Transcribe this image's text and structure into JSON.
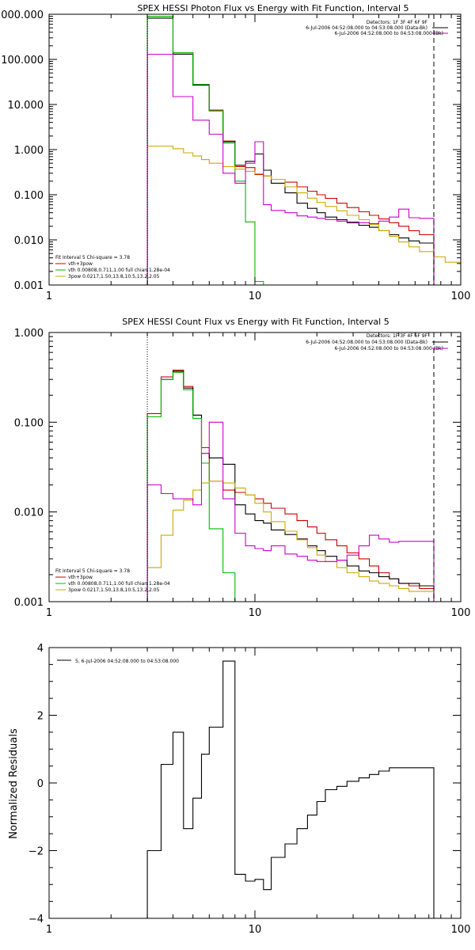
{
  "chart_data": [
    {
      "type": "line",
      "title": "SPEX HESSI Photon Flux vs Energy with Fit Function, Interval 5",
      "xscale": "log",
      "yscale": "log",
      "xlim": [
        1,
        100
      ],
      "ylim": [
        0.001,
        1000
      ],
      "xticks": [
        "1",
        "10",
        "100"
      ],
      "yticks": [
        "1000.000",
        "100.000",
        "10.000",
        "1.000",
        "0.100",
        "0.010",
        "0.001"
      ],
      "ytick_values": [
        1000,
        100,
        10,
        1,
        0.1,
        0.01,
        0.001
      ],
      "grid": false,
      "detectors_label": "Detectors: 1F 3F 4F 6F 9F",
      "legend_top": [
        {
          "text": "6-Jul-2006 04:52:08.000 to 04:53:08.000 (Data-Bk)",
          "color": "#000000"
        },
        {
          "text": "6-Jul-2006 04:52:08.000 to 04:53:08.000 (Bk)",
          "color": "#cc00cc"
        }
      ],
      "legend_bottom": [
        {
          "text": "Fit Interval 5   Chi-square = 3.78",
          "color": "#000000"
        },
        {
          "text": "vth+3pow",
          "color": "#cc0000"
        },
        {
          "text": "vth 0.00808,0.711,1.00  full chian 1.28e-04",
          "color": "#00bb00"
        },
        {
          "text": "3pow 0.0217,1.50,13.8,10.5,13.2,2.05",
          "color": "#ccaa00"
        }
      ],
      "vlines": [
        {
          "x": 3.0,
          "style": "dotted",
          "color": "#000000"
        },
        {
          "x": 74,
          "style": "dashed",
          "color": "#000000"
        }
      ],
      "edges": [
        3.0,
        3.5,
        4.0,
        4.5,
        5.0,
        5.5,
        6.0,
        7.0,
        8.0,
        9.0,
        10.0,
        11.0,
        12.0,
        14.0,
        16.0,
        18.0,
        20.0,
        22.0,
        25.0,
        28.0,
        32.0,
        36.0,
        40.0,
        45.0,
        50.0,
        56.0,
        63.0,
        74.0,
        84.0,
        100.0
      ],
      "series": [
        {
          "name": "vth+3pow",
          "color": "#cc0000",
          "values": [
            900,
            900,
            140,
            140,
            28,
            28,
            7.5,
            1.55,
            0.42,
            0.4,
            0.28,
            0.26,
            0.22,
            0.19,
            0.15,
            0.12,
            0.1,
            0.083,
            0.065,
            0.052,
            0.042,
            0.035,
            0.029,
            0.024,
            0.02,
            0.016,
            0.013
          ]
        },
        {
          "name": "Data-Bk",
          "color": "#000000",
          "values": [
            820,
            820,
            130,
            130,
            27,
            27,
            7.2,
            1.5,
            0.45,
            0.55,
            0.8,
            0.35,
            0.18,
            0.11,
            0.065,
            0.05,
            0.04,
            0.032,
            0.028,
            0.024,
            0.021,
            0.019,
            0.016,
            0.013,
            0.011,
            0.0095,
            0.0085
          ]
        },
        {
          "name": "vth",
          "color": "#00bb00",
          "values": [
            900,
            900,
            140,
            140,
            28,
            28,
            7.2,
            1.4,
            0.2,
            0.025,
            0.0012
          ]
        },
        {
          "name": "3pow",
          "color": "#ccaa00",
          "values": [
            1.2,
            1.2,
            1.05,
            0.85,
            0.72,
            0.6,
            0.5,
            0.42,
            0.37,
            0.33,
            0.29,
            0.26,
            0.22,
            0.15,
            0.11,
            0.084,
            0.068,
            0.055,
            0.044,
            0.035,
            0.028,
            0.022,
            0.016,
            0.012,
            0.009,
            0.007,
            0.0055,
            0.0042,
            0.0032
          ]
        },
        {
          "name": "Bk",
          "color": "#cc00cc",
          "values": [
            130,
            130,
            15,
            15,
            4.5,
            4.5,
            2.2,
            0.3,
            0.18,
            0.5,
            1.5,
            0.06,
            0.045,
            0.04,
            0.034,
            0.032,
            0.03,
            0.028,
            0.026,
            0.025,
            0.024,
            0.023,
            0.026,
            0.032,
            0.048,
            0.031,
            0.03
          ]
        }
      ]
    },
    {
      "type": "line",
      "title": "SPEX HESSI Count Flux vs Energy with Fit Function, Interval 5",
      "xscale": "log",
      "yscale": "log",
      "xlim": [
        1,
        100
      ],
      "ylim": [
        0.001,
        1
      ],
      "xticks": [
        "1",
        "10",
        "100"
      ],
      "yticks": [
        "1.000",
        "0.100",
        "0.010",
        "0.001"
      ],
      "ytick_values": [
        1,
        0.1,
        0.01,
        0.001
      ],
      "grid": false,
      "detectors_label": "Detectors: 1F 3F 4F 6F 9F",
      "legend_top": [
        {
          "text": "6-Jul-2006 04:52:08.000 to 04:53:08.000 (Data-Bk)",
          "color": "#000000"
        },
        {
          "text": "6-Jul-2006 04:52:08.000 to 04:53:08.000 (Bk)",
          "color": "#cc00cc"
        }
      ],
      "legend_bottom": [
        {
          "text": "Fit Interval 5   Chi-square = 3.78",
          "color": "#000000"
        },
        {
          "text": "vth+3pow",
          "color": "#cc0000"
        },
        {
          "text": "vth 0.00808,0.711,1.00  full chian 1.28e-04",
          "color": "#00bb00"
        },
        {
          "text": "3pow 0.0217,1.50,13.8,10.5,13.2,2.05",
          "color": "#ccaa00"
        }
      ],
      "vlines": [
        {
          "x": 3.0,
          "style": "dotted",
          "color": "#000000"
        },
        {
          "x": 74,
          "style": "dashed",
          "color": "#000000"
        }
      ],
      "edges": [
        3.0,
        3.5,
        4.0,
        4.5,
        5.0,
        5.5,
        6.0,
        7.0,
        8.0,
        9.0,
        10.0,
        11.0,
        12.0,
        14.0,
        16.0,
        18.0,
        20.0,
        22.0,
        25.0,
        28.0,
        32.0,
        36.0,
        40.0,
        45.0,
        50.0,
        56.0,
        63.0,
        74.0
      ],
      "series": [
        {
          "name": "vth+3pow",
          "color": "#cc0000",
          "values": [
            0.125,
            0.32,
            0.38,
            0.25,
            0.12,
            0.052,
            0.022,
            0.0175,
            0.0165,
            0.0155,
            0.014,
            0.0125,
            0.011,
            0.0095,
            0.008,
            0.0068,
            0.0058,
            0.0049,
            0.0042,
            0.0035,
            0.003,
            0.0025,
            0.0021,
            0.0018,
            0.0016,
            0.0015,
            0.0014
          ]
        },
        {
          "name": "Data-Bk",
          "color": "#000000",
          "values": [
            0.115,
            0.3,
            0.37,
            0.24,
            0.12,
            0.045,
            0.04,
            0.034,
            0.012,
            0.0095,
            0.008,
            0.0075,
            0.0063,
            0.0056,
            0.005,
            0.0042,
            0.0037,
            0.0032,
            0.0029,
            0.0025,
            0.0022,
            0.0021,
            0.0019,
            0.0018,
            0.0016,
            0.0016,
            0.0015
          ]
        },
        {
          "name": "vth",
          "color": "#00bb00",
          "values": [
            0.115,
            0.3,
            0.36,
            0.23,
            0.11,
            0.035,
            0.0065,
            0.0021,
            0.001
          ]
        },
        {
          "name": "3pow",
          "color": "#ccaa00",
          "values": [
            0.0024,
            0.0055,
            0.0105,
            0.0135,
            0.0175,
            0.021,
            0.022,
            0.021,
            0.0185,
            0.0155,
            0.0125,
            0.01,
            0.0078,
            0.0061,
            0.0049,
            0.004,
            0.0033,
            0.0028,
            0.0024,
            0.0021,
            0.0019,
            0.0017,
            0.0016,
            0.0015,
            0.0014,
            0.0013,
            0.0013
          ]
        },
        {
          "name": "Bk",
          "color": "#cc00cc",
          "values": [
            0.02,
            0.016,
            0.014,
            0.014,
            0.012,
            0.045,
            0.1,
            0.014,
            0.0058,
            0.0042,
            0.0039,
            0.0037,
            0.0042,
            0.0034,
            0.0032,
            0.0029,
            0.0028,
            0.0028,
            0.0029,
            0.0033,
            0.0042,
            0.0055,
            0.005,
            0.0046,
            0.0047,
            0.0047,
            0.0047
          ]
        }
      ]
    },
    {
      "type": "line",
      "title": "",
      "xscale": "log",
      "yscale": "linear",
      "xlim": [
        1,
        100
      ],
      "ylim": [
        -4,
        4
      ],
      "xticks": [
        "1",
        "10",
        "100"
      ],
      "yticks": [
        "4",
        "2",
        "0",
        "−2",
        "−4"
      ],
      "ytick_values": [
        4,
        2,
        0,
        -2,
        -4
      ],
      "ylabel": "Normalized  Residuals",
      "grid": false,
      "legend_top": [
        {
          "text": "5,  6-Jul-2006 04:52:08.000 to 04:53:08.000",
          "color": "#000000"
        }
      ],
      "edges": [
        3.0,
        3.5,
        4.0,
        4.5,
        5.0,
        5.5,
        6.0,
        7.0,
        8.0,
        9.0,
        10.0,
        11.0,
        12.0,
        14.0,
        16.0,
        18.0,
        20.0,
        22.0,
        25.0,
        28.0,
        32.0,
        36.0,
        40.0,
        45.0,
        50.0,
        56.0,
        63.0,
        74.0
      ],
      "series": [
        {
          "name": "",
          "color": "#000000",
          "values": [
            -2.0,
            0.55,
            1.5,
            -1.35,
            -0.45,
            0.85,
            1.65,
            3.6,
            -2.7,
            -2.9,
            -2.85,
            -3.15,
            -2.2,
            -1.8,
            -1.35,
            -0.95,
            -0.55,
            -0.2,
            -0.1,
            0.05,
            0.15,
            0.25,
            0.35,
            0.45,
            0.45,
            0.45,
            0.45
          ]
        }
      ]
    }
  ]
}
